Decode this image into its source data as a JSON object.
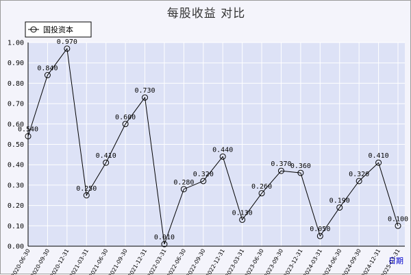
{
  "chart_data": {
    "type": "line",
    "title": "每股收益  对比",
    "xlabel": "日期",
    "ylabel": "",
    "ylim": [
      0,
      1.0
    ],
    "yticks": [
      "0.00",
      "0.10",
      "0.20",
      "0.30",
      "0.40",
      "0.50",
      "0.60",
      "0.70",
      "0.80",
      "0.90",
      "1.00"
    ],
    "grid": true,
    "legend_position": "top-left",
    "categories": [
      "2020-06-30",
      "2020-09-30",
      "2020-12-31",
      "2021-03-31",
      "2021-06-30",
      "2021-09-30",
      "2021-12-31",
      "2022-03-31",
      "2022-06-30",
      "2022-09-30",
      "2022-12-31",
      "2023-03-31",
      "2023-06-30",
      "2023-09-30",
      "2023-12-31",
      "2024-03-31",
      "2024-06-30",
      "2024-09-30",
      "2024-12-31",
      "2025-03-31"
    ],
    "series": [
      {
        "name": "国投资本",
        "values": [
          0.54,
          0.84,
          0.97,
          0.25,
          0.41,
          0.6,
          0.73,
          0.01,
          0.28,
          0.32,
          0.44,
          0.13,
          0.26,
          0.37,
          0.36,
          0.05,
          0.19,
          0.32,
          0.41,
          0.1
        ],
        "labels": [
          "0.540",
          "0.840",
          "0.970",
          "0.250",
          "0.410",
          "0.600",
          "0.730",
          "0.010",
          "0.280",
          "0.320",
          "0.440",
          "0.130",
          "0.260",
          "0.370",
          "0.360",
          "0.050",
          "0.190",
          "0.320",
          "0.410",
          "0.100"
        ],
        "color": "#000000"
      }
    ],
    "colors": {
      "plot_bg": "#dde2f6",
      "grid": "#ffffff",
      "line": "#000000",
      "axis_title": "#0000cc"
    }
  }
}
